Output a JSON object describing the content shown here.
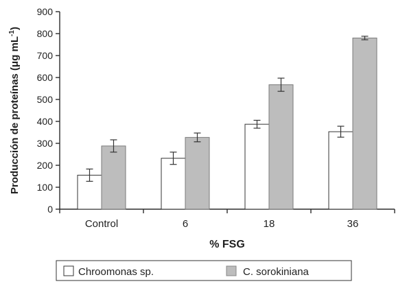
{
  "chart_data": {
    "type": "bar",
    "title": "",
    "xlabel": "% FSG",
    "ylabel": "Producción de proteínas (μg mL",
    "ylabel_superscript": "-1",
    "ylabel_suffix": ")",
    "categories": [
      "Control",
      "6",
      "18",
      "36"
    ],
    "ylim": [
      0,
      900
    ],
    "yticks": [
      "0",
      "100",
      "200",
      "300",
      "400",
      "500",
      "600",
      "700",
      "800",
      "900"
    ],
    "grid": false,
    "legend_position": "bottom",
    "series": [
      {
        "name": "Chroomonas sp.",
        "color": "#ffffff",
        "values": [
          155,
          232,
          387,
          353
        ],
        "errors": [
          28,
          28,
          18,
          25
        ]
      },
      {
        "name": "C. sorokiniana",
        "color": "#bdbdbd",
        "values": [
          288,
          327,
          567,
          780
        ],
        "errors": [
          28,
          20,
          30,
          8
        ]
      }
    ]
  }
}
